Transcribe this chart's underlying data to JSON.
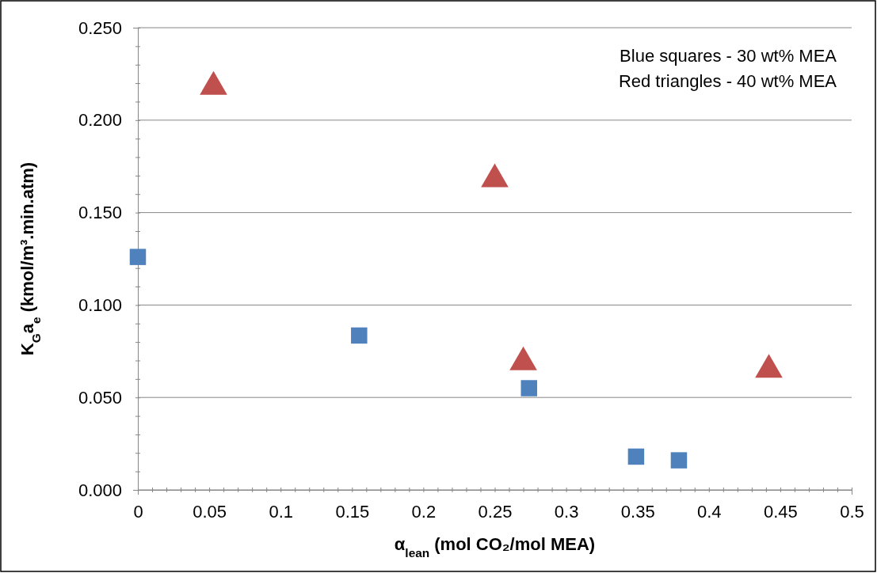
{
  "chart_data": {
    "type": "scatter",
    "xlabel": "α$_{lean}$ (mol CO₂/mol MEA)",
    "ylabel": "K$_{G}$a$_{e}$ (kmol/m³.min.atm)",
    "series": [
      {
        "color": "#4f81bd",
        "marker": "square",
        "x": [
          0,
          0.155,
          0.274,
          0.349,
          0.379
        ],
        "values": [
          0.126,
          0.0835,
          0.055,
          0.018,
          0.016
        ]
      },
      {
        "color": "#c0504d",
        "marker": "triangle",
        "x": [
          0.053,
          0.25,
          0.27,
          0.442
        ],
        "values": [
          0.218,
          0.168,
          0.069,
          0.065
        ]
      }
    ],
    "annotations": [
      "Blue squares - 30 wt% MEA",
      "Red triangles - 40 wt% MEA"
    ],
    "xlim": [
      0,
      0.5
    ],
    "ylim": [
      0,
      0.25
    ],
    "xticks": [
      0,
      {
        "value": 0.01,
        "label": null
      },
      {
        "value": 0.02,
        "label": null
      },
      {
        "value": 0.03,
        "label": null
      },
      {
        "value": 0.04,
        "label": null
      },
      0.05,
      {
        "value": 0.06,
        "label": null
      },
      {
        "value": 0.07,
        "label": null
      },
      {
        "value": 0.08,
        "label": null
      },
      {
        "value": 0.09,
        "label": null
      },
      0.1,
      {
        "value": 0.11,
        "label": null
      },
      {
        "value": 0.12,
        "label": null
      },
      {
        "value": 0.13,
        "label": null
      },
      {
        "value": 0.14,
        "label": null
      },
      0.15,
      {
        "value": 0.16,
        "label": null
      },
      {
        "value": 0.17,
        "label": null
      },
      {
        "value": 0.18,
        "label": null
      },
      {
        "value": 0.19,
        "label": null
      },
      0.2,
      {
        "value": 0.21,
        "label": null
      },
      {
        "value": 0.22,
        "label": null
      },
      {
        "value": 0.23,
        "label": null
      },
      {
        "value": 0.24,
        "label": null
      },
      0.25,
      {
        "value": 0.26,
        "label": null
      },
      {
        "value": 0.27,
        "label": null
      },
      {
        "value": 0.28,
        "label": null
      },
      {
        "value": 0.29,
        "label": null
      },
      0.3,
      {
        "value": 0.31,
        "label": null
      },
      {
        "value": 0.32,
        "label": null
      },
      {
        "value": 0.33,
        "label": null
      },
      {
        "value": 0.34,
        "label": null
      },
      0.35,
      {
        "value": 0.36,
        "label": null
      },
      {
        "value": 0.37,
        "label": null
      },
      {
        "value": 0.38,
        "label": null
      },
      {
        "value": 0.39,
        "label": null
      },
      0.4,
      {
        "value": 0.41,
        "label": null
      },
      {
        "value": 0.42,
        "label": null
      },
      {
        "value": 0.43,
        "label": null
      },
      {
        "value": 0.44,
        "label": null
      },
      0.45,
      {
        "value": 0.46,
        "label": null
      },
      {
        "value": 0.47,
        "label": null
      },
      {
        "value": 0.48,
        "label": null
      },
      {
        "value": 0.49,
        "label": null
      },
      0.5
    ],
    "yticks": [
      {
        "value": 0,
        "label": "0.000"
      },
      {
        "value": 0.01,
        "label": null
      },
      {
        "value": 0.02,
        "label": null
      },
      {
        "value": 0.03,
        "label": null
      },
      {
        "value": 0.04,
        "label": null
      },
      {
        "value": 0.05,
        "label": "0.050"
      },
      {
        "value": 0.06,
        "label": null
      },
      {
        "value": 0.07,
        "label": null
      },
      {
        "value": 0.08,
        "label": null
      },
      {
        "value": 0.09,
        "label": null
      },
      {
        "value": 0.1,
        "label": "0.100"
      },
      {
        "value": 0.11,
        "label": null
      },
      {
        "value": 0.12,
        "label": null
      },
      {
        "value": 0.13,
        "label": null
      },
      {
        "value": 0.14,
        "label": null
      },
      {
        "value": 0.15,
        "label": "0.150"
      },
      {
        "value": 0.16,
        "label": null
      },
      {
        "value": 0.17,
        "label": null
      },
      {
        "value": 0.18,
        "label": null
      },
      {
        "value": 0.19,
        "label": null
      },
      {
        "value": 0.2,
        "label": "0.200"
      },
      {
        "value": 0.21,
        "label": null
      },
      {
        "value": 0.22,
        "label": null
      },
      {
        "value": 0.23,
        "label": null
      },
      {
        "value": 0.24,
        "label": null
      },
      {
        "value": 0.25,
        "label": "0.250"
      }
    ],
    "grid": "y"
  }
}
